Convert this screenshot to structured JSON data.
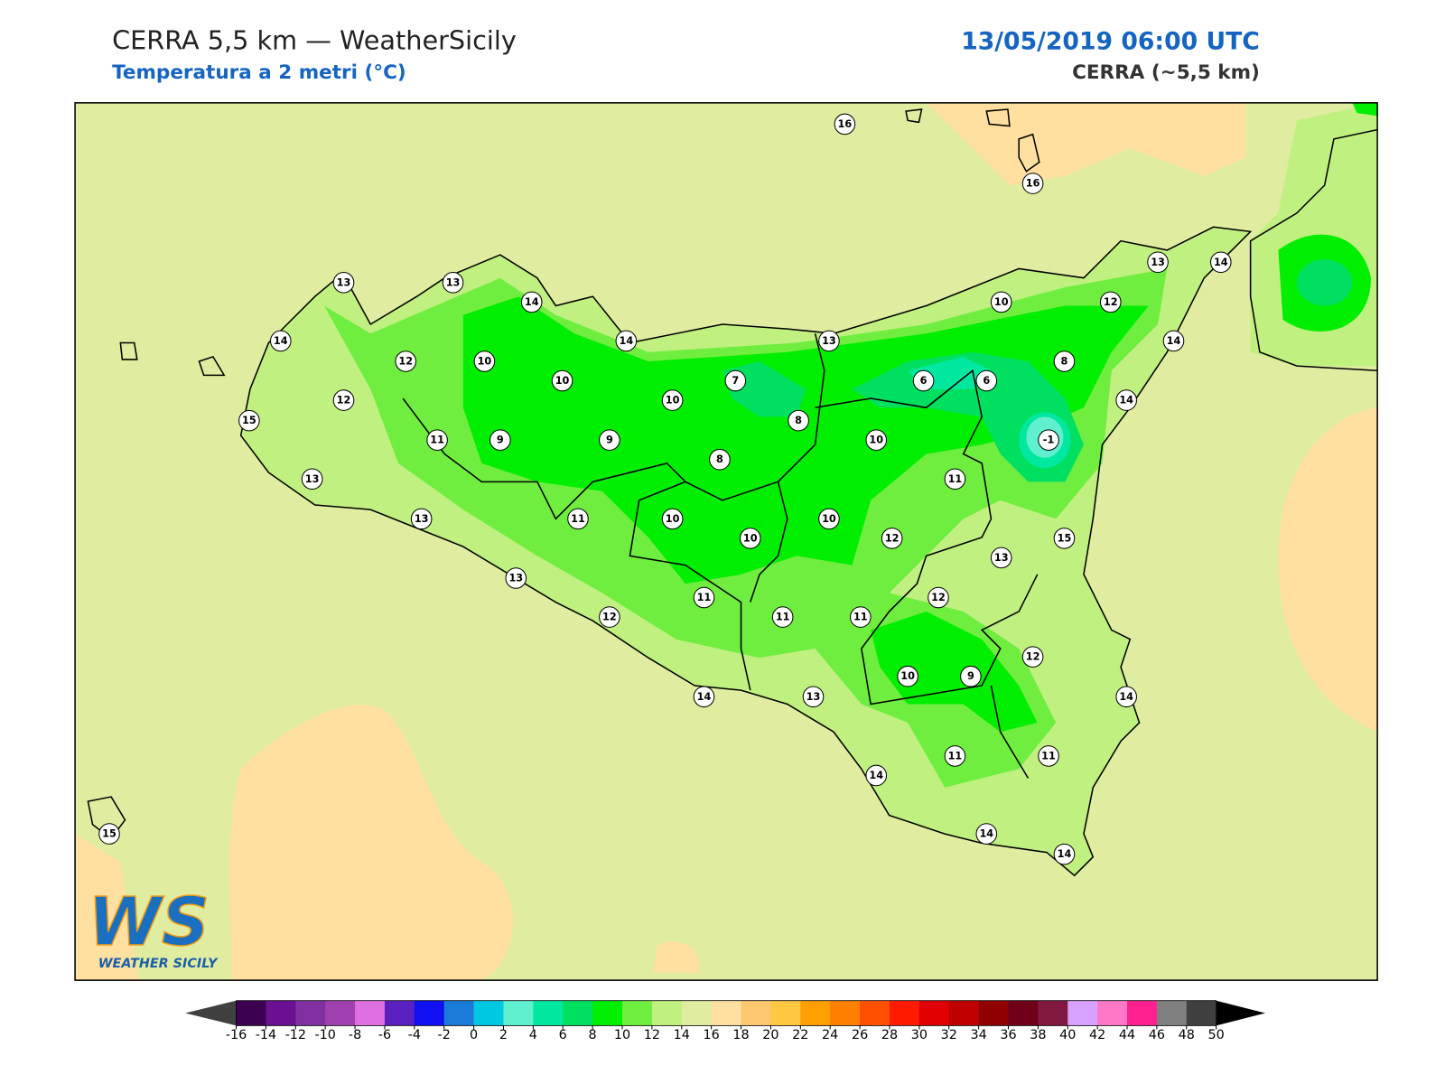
{
  "header": {
    "title": "CERRA 5,5 km — WeatherSicily",
    "subtitle": "Temperatura a 2 metri (°C)",
    "datetime": "13/05/2019 06:00 UTC",
    "model": "CERRA (~5,5 km)"
  },
  "map": {
    "stations": [
      16,
      16,
      13,
      13,
      14,
      13,
      14,
      14,
      14,
      13,
      10,
      12,
      14,
      12,
      10,
      8,
      10,
      7,
      6,
      6,
      12,
      10,
      14,
      15,
      8,
      11,
      9,
      9,
      10,
      -1,
      8,
      13,
      11,
      13,
      11,
      10,
      10,
      10,
      12,
      15,
      13,
      13,
      12,
      11,
      12,
      11,
      11,
      12,
      10,
      9,
      14,
      13,
      14,
      14,
      11,
      11,
      14,
      14,
      15
    ],
    "colorbar": {
      "ticks": [
        -16,
        -14,
        -12,
        -10,
        -8,
        -6,
        -4,
        -2,
        0,
        2,
        4,
        6,
        8,
        10,
        12,
        14,
        16,
        18,
        20,
        22,
        24,
        26,
        28,
        30,
        32,
        34,
        36,
        38,
        40,
        42,
        44,
        46,
        48,
        50
      ],
      "colors": [
        "#3d0050",
        "#6a1090",
        "#8030a0",
        "#a040b0",
        "#e070e0",
        "#5a20c0",
        "#1010f0",
        "#1a7ad8",
        "#00c8e0",
        "#60f0d0",
        "#00e8a0",
        "#00e060",
        "#00ee00",
        "#70ee40",
        "#c0f080",
        "#e0eca0",
        "#ffe0a0",
        "#ffc870",
        "#ffc840",
        "#ffa000",
        "#ff8000",
        "#ff5000",
        "#ff1a00",
        "#e00000",
        "#c00000",
        "#900000",
        "#700018",
        "#801840",
        "#d8a0ff",
        "#ff78c8",
        "#ff2090",
        "#808080",
        "#404040"
      ],
      "under_color": "#404040",
      "over_color": "#000000"
    }
  },
  "logo": {
    "mark": "WS",
    "text": "WEATHER SICILY"
  }
}
